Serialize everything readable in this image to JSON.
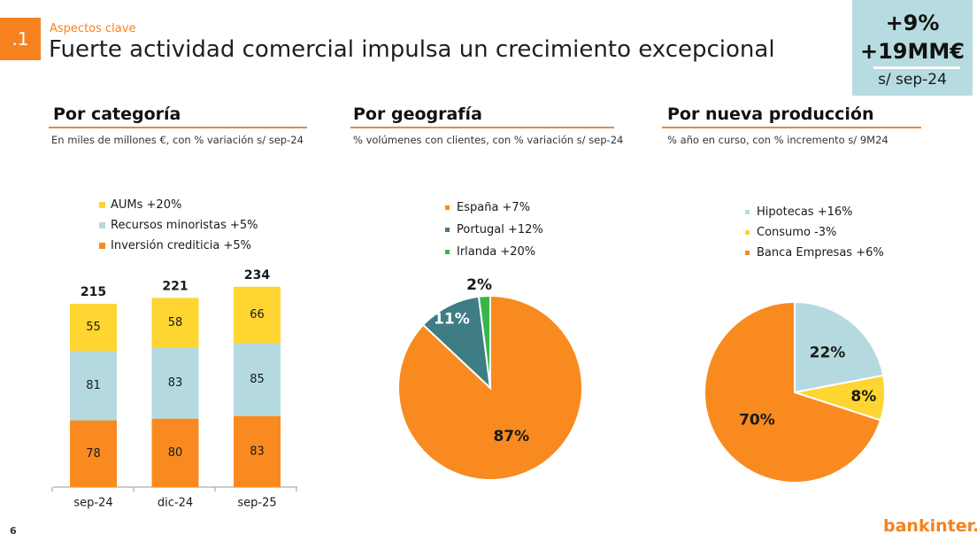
{
  "header": {
    "section_number": ".1",
    "subtitle": "Aspectos clave",
    "title": "Fuerte actividad comercial impulsa un crecimiento excepcional"
  },
  "kpi": {
    "growth_pct": "+9%",
    "growth_abs": "+19MM€",
    "basis": "s/ sep-24"
  },
  "sections": [
    {
      "title": "Por categoría",
      "note": "En miles de millones €, con % variación s/ sep-24"
    },
    {
      "title": "Por geografía",
      "note": "% volúmenes con clientes, con % variación s/ sep-24"
    },
    {
      "title": "Por nueva producción",
      "note": "% año en curso, con % incremento s/ 9M24"
    }
  ],
  "footer": {
    "page_number": "6",
    "brand": "bankinter."
  },
  "colors": {
    "orange": "#f98a1f",
    "light_blue": "#b4dadf",
    "yellow": "#fed531",
    "teal": "#3f7d84",
    "green": "#3ab54a"
  },
  "chart_data": [
    {
      "type": "bar",
      "stacked": true,
      "categories": [
        "sep-24",
        "dic-24",
        "sep-25"
      ],
      "series": [
        {
          "name": "Inversión crediticia +5%",
          "values": [
            78,
            80,
            83
          ],
          "color": "#f98a1f"
        },
        {
          "name": "Recursos minoristas +5%",
          "values": [
            81,
            83,
            85
          ],
          "color": "#b4dadf"
        },
        {
          "name": "AUMs +20%",
          "values": [
            55,
            58,
            66
          ],
          "color": "#fed531"
        }
      ],
      "totals": [
        215,
        221,
        234
      ],
      "legend": [
        "AUMs +20%",
        "Recursos minoristas +5%",
        "Inversión crediticia +5%"
      ],
      "ylim": [
        0,
        240
      ]
    },
    {
      "type": "pie",
      "slices": [
        {
          "label": "España +7%",
          "value": 87,
          "display": "87%",
          "color": "#f98a1f"
        },
        {
          "label": "Portugal +12%",
          "value": 11,
          "display": "11%",
          "color": "#3f7d84"
        },
        {
          "label": "Irlanda +20%",
          "value": 2,
          "display": "2%",
          "color": "#3ab54a"
        }
      ]
    },
    {
      "type": "pie",
      "slices": [
        {
          "label": "Hipotecas +16%",
          "value": 22,
          "display": "22%",
          "color": "#b4dadf"
        },
        {
          "label": "Consumo -3%",
          "value": 8,
          "display": "8%",
          "color": "#fed531"
        },
        {
          "label": "Banca Empresas +6%",
          "value": 70,
          "display": "70%",
          "color": "#f98a1f"
        }
      ]
    }
  ]
}
